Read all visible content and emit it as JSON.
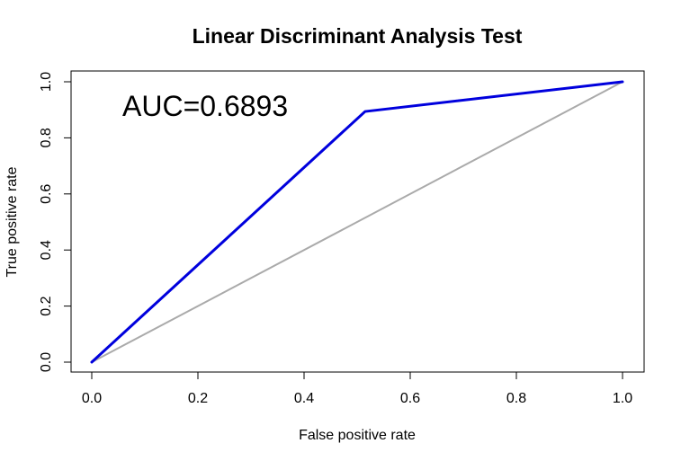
{
  "chart_data": {
    "type": "line",
    "title": "Linear Discriminant Analysis Test",
    "xlabel": "False positive rate",
    "ylabel": "True positive rate",
    "xlim": [
      0,
      1
    ],
    "ylim": [
      0,
      1
    ],
    "xticks": [
      "0.0",
      "0.2",
      "0.4",
      "0.6",
      "0.8",
      "1.0"
    ],
    "yticks": [
      "0.0",
      "0.2",
      "0.4",
      "0.6",
      "0.8",
      "1.0"
    ],
    "grid": false,
    "legend": "none",
    "annotation": "AUC=0.6893",
    "series": [
      {
        "color": "#0000dd",
        "x": [
          0.0,
          0.515,
          1.0
        ],
        "y": [
          0.0,
          0.894,
          1.0
        ]
      },
      {
        "color": "#aaaaaa",
        "x": [
          0.0,
          1.0
        ],
        "y": [
          0.0,
          1.0
        ]
      }
    ]
  }
}
